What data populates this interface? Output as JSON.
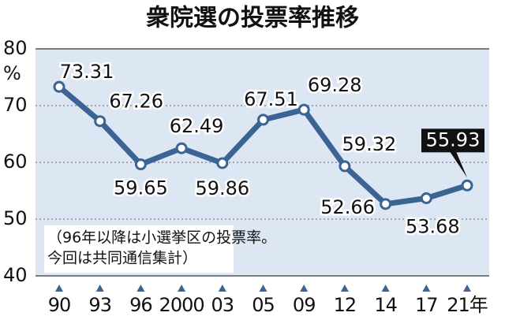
{
  "chart_data": {
    "type": "line",
    "title": "衆院選の投票率推移",
    "y_unit": "%",
    "categories": [
      "90",
      "93",
      "96",
      "2000",
      "03",
      "05",
      "09",
      "12",
      "14",
      "17",
      "21年"
    ],
    "series": [
      {
        "color": "#3b6494",
        "values": [
          73.31,
          67.26,
          59.65,
          62.49,
          59.86,
          67.51,
          69.28,
          59.32,
          52.66,
          53.68,
          55.93
        ]
      }
    ],
    "ylim": [
      40,
      80
    ],
    "yticks": [
      40,
      50,
      60,
      70,
      80
    ],
    "grid": true,
    "note": [
      "（96年以降は小選挙区の投票率。",
      "今回は共同通信集計）"
    ]
  }
}
